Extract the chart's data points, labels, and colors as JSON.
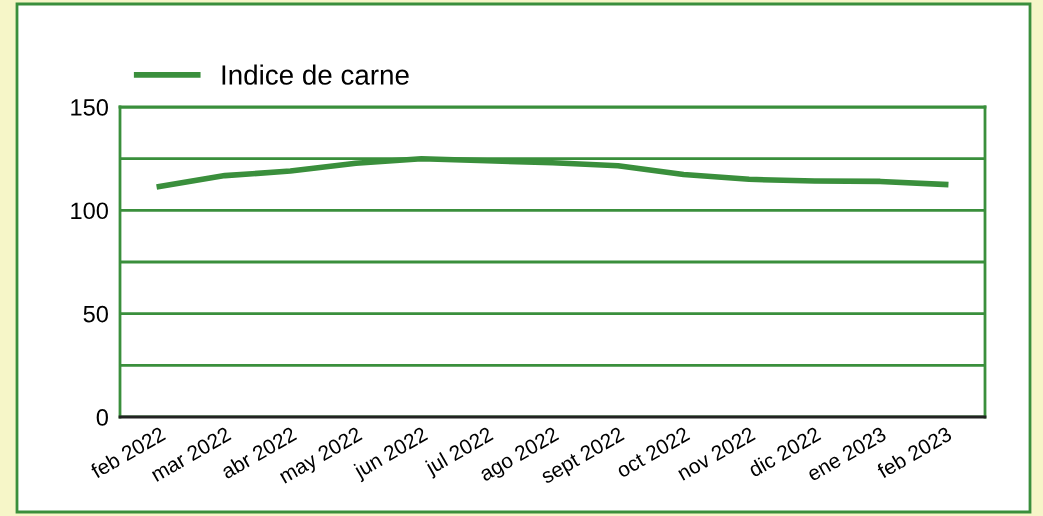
{
  "chart_data": {
    "type": "line",
    "categories": [
      "feb 2022",
      "mar 2022",
      "abr 2022",
      "may 2022",
      "jun 2022",
      "jul 2022",
      "ago 2022",
      "sept 2022",
      "oct 2022",
      "nov 2022",
      "dic 2022",
      "ene 2023",
      "feb 2023"
    ],
    "series": [
      {
        "name": "Indice de carne",
        "color": "#3a8f3c",
        "values": [
          111.5,
          116.8,
          119,
          122.8,
          125,
          124,
          123,
          121.6,
          117.3,
          115,
          114.2,
          114,
          112.5
        ]
      }
    ],
    "ylim": [
      0,
      150
    ],
    "yticks": [
      0,
      {
        "value": 25,
        "label": null
      },
      50,
      {
        "value": 75,
        "label": null
      },
      100,
      {
        "value": 125,
        "label": null
      },
      150
    ],
    "grid": "y",
    "legend": "top left",
    "line_style": "solid",
    "marker": "none"
  }
}
